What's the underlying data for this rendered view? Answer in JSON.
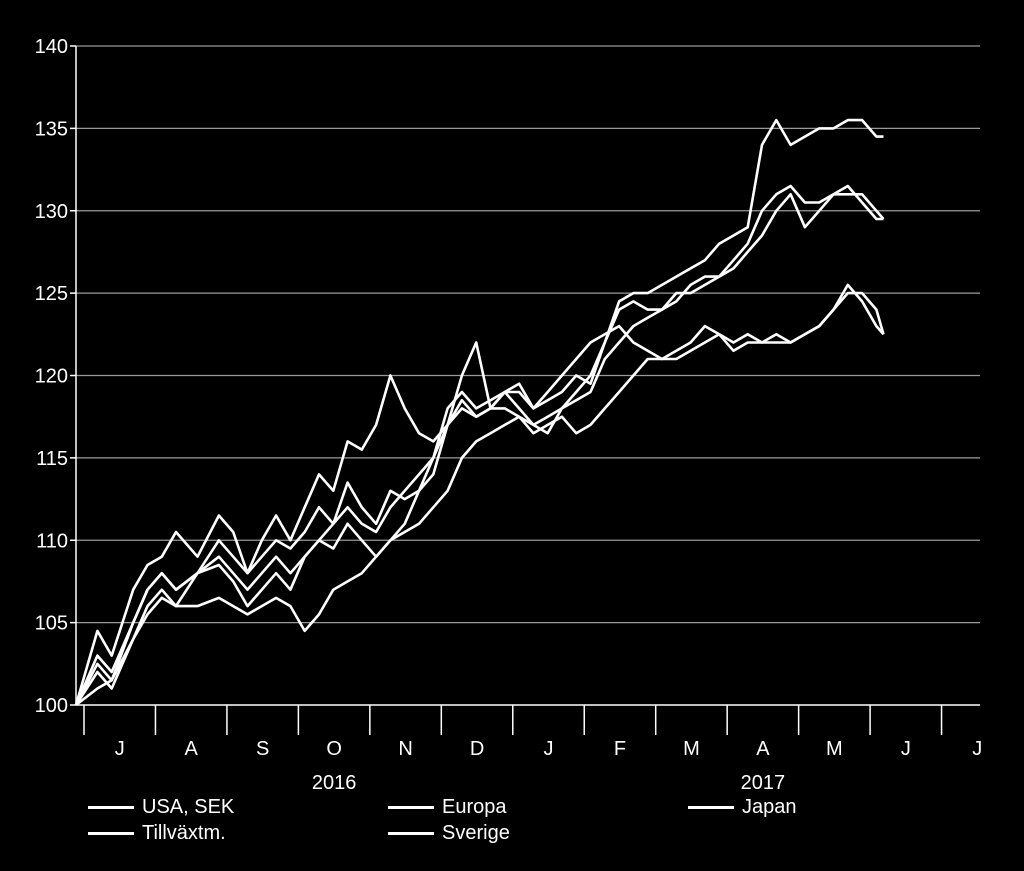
{
  "chart_data": {
    "type": "line",
    "title": "",
    "xlabel": "",
    "ylabel": "",
    "ylim": [
      100,
      140
    ],
    "yticks": [
      100,
      105,
      110,
      115,
      120,
      125,
      130,
      135,
      140
    ],
    "grid": true,
    "line_color": "#ffffff",
    "background_color": "#000000",
    "x_months": [
      "J",
      "A",
      "S",
      "O",
      "N",
      "D",
      "J",
      "F",
      "M",
      "A",
      "M",
      "J",
      "J"
    ],
    "x_years": [
      {
        "label": "2016",
        "month_index": 3.5
      },
      {
        "label": "2017",
        "month_index": 9.5
      }
    ],
    "legend_position": "bottom",
    "series": [
      {
        "name": "USA, SEK",
        "points": [
          [
            0,
            100
          ],
          [
            0.3,
            104.5
          ],
          [
            0.5,
            103
          ],
          [
            0.8,
            107
          ],
          [
            1,
            108.5
          ],
          [
            1.2,
            109
          ],
          [
            1.4,
            110.5
          ],
          [
            1.7,
            109
          ],
          [
            2,
            111.5
          ],
          [
            2.2,
            110.5
          ],
          [
            2.4,
            108
          ],
          [
            2.6,
            110
          ],
          [
            2.8,
            111.5
          ],
          [
            3,
            110
          ],
          [
            3.2,
            112
          ],
          [
            3.4,
            114
          ],
          [
            3.6,
            113
          ],
          [
            3.8,
            116
          ],
          [
            4,
            115.5
          ],
          [
            4.2,
            117
          ],
          [
            4.4,
            120
          ],
          [
            4.6,
            118
          ],
          [
            4.8,
            116.5
          ],
          [
            5,
            116
          ],
          [
            5.2,
            117
          ],
          [
            5.4,
            118.5
          ],
          [
            5.6,
            117.5
          ],
          [
            5.8,
            118
          ],
          [
            6,
            119
          ],
          [
            6.2,
            119.5
          ],
          [
            6.4,
            118
          ],
          [
            6.6,
            118.5
          ],
          [
            6.8,
            119
          ],
          [
            7,
            120
          ],
          [
            7.2,
            119.5
          ],
          [
            7.4,
            122
          ],
          [
            7.6,
            124.5
          ],
          [
            7.8,
            125
          ],
          [
            8,
            125
          ],
          [
            8.2,
            125.5
          ],
          [
            8.4,
            126
          ],
          [
            8.6,
            126.5
          ],
          [
            8.8,
            127
          ],
          [
            9,
            128
          ],
          [
            9.2,
            128.5
          ],
          [
            9.4,
            129
          ],
          [
            9.6,
            134
          ],
          [
            9.8,
            135.5
          ],
          [
            10,
            134
          ],
          [
            10.2,
            134.5
          ],
          [
            10.4,
            135
          ],
          [
            10.6,
            135
          ],
          [
            10.8,
            135.5
          ],
          [
            11,
            135.5
          ],
          [
            11.2,
            134.5
          ],
          [
            11.3,
            134.5
          ]
        ]
      },
      {
        "name": "Europa",
        "points": [
          [
            0,
            100
          ],
          [
            0.3,
            102
          ],
          [
            0.5,
            101
          ],
          [
            0.8,
            104
          ],
          [
            1,
            106
          ],
          [
            1.2,
            107
          ],
          [
            1.4,
            106
          ],
          [
            1.7,
            108
          ],
          [
            2,
            108.5
          ],
          [
            2.2,
            107.5
          ],
          [
            2.4,
            106
          ],
          [
            2.6,
            107
          ],
          [
            2.8,
            108
          ],
          [
            3,
            107
          ],
          [
            3.2,
            109
          ],
          [
            3.4,
            110
          ],
          [
            3.6,
            111
          ],
          [
            3.8,
            112
          ],
          [
            4,
            111
          ],
          [
            4.2,
            110.5
          ],
          [
            4.4,
            112
          ],
          [
            4.6,
            113
          ],
          [
            4.8,
            114
          ],
          [
            5,
            115
          ],
          [
            5.2,
            117
          ],
          [
            5.4,
            118
          ],
          [
            5.6,
            117.5
          ],
          [
            5.8,
            118
          ],
          [
            6,
            118
          ],
          [
            6.2,
            117.5
          ],
          [
            6.4,
            117
          ],
          [
            6.6,
            117.5
          ],
          [
            6.8,
            118
          ],
          [
            7,
            118.5
          ],
          [
            7.2,
            119
          ],
          [
            7.4,
            121
          ],
          [
            7.6,
            122
          ],
          [
            7.8,
            123
          ],
          [
            8,
            123.5
          ],
          [
            8.2,
            124
          ],
          [
            8.4,
            125
          ],
          [
            8.6,
            125
          ],
          [
            8.8,
            125.5
          ],
          [
            9,
            126
          ],
          [
            9.2,
            126.5
          ],
          [
            9.4,
            127.5
          ],
          [
            9.6,
            128.5
          ],
          [
            9.8,
            130
          ],
          [
            10,
            131
          ],
          [
            10.2,
            129
          ],
          [
            10.4,
            130
          ],
          [
            10.6,
            131
          ],
          [
            10.8,
            131.5
          ],
          [
            11,
            130.5
          ],
          [
            11.2,
            129.5
          ],
          [
            11.3,
            129.5
          ]
        ]
      },
      {
        "name": "Japan",
        "points": [
          [
            0,
            100
          ],
          [
            0.3,
            103
          ],
          [
            0.5,
            102
          ],
          [
            0.8,
            105
          ],
          [
            1,
            107
          ],
          [
            1.2,
            108
          ],
          [
            1.4,
            107
          ],
          [
            1.7,
            108
          ],
          [
            2,
            109
          ],
          [
            2.2,
            108
          ],
          [
            2.4,
            107
          ],
          [
            2.6,
            108
          ],
          [
            2.8,
            109
          ],
          [
            3,
            108
          ],
          [
            3.2,
            109
          ],
          [
            3.4,
            110
          ],
          [
            3.6,
            109.5
          ],
          [
            3.8,
            111
          ],
          [
            4,
            110
          ],
          [
            4.2,
            109
          ],
          [
            4.4,
            110
          ],
          [
            4.6,
            111
          ],
          [
            4.8,
            113
          ],
          [
            5,
            115
          ],
          [
            5.2,
            118
          ],
          [
            5.4,
            119
          ],
          [
            5.6,
            118
          ],
          [
            5.8,
            118.5
          ],
          [
            6,
            119
          ],
          [
            6.2,
            118
          ],
          [
            6.4,
            117
          ],
          [
            6.6,
            116.5
          ],
          [
            6.8,
            118
          ],
          [
            7,
            119
          ],
          [
            7.2,
            120
          ],
          [
            7.4,
            122
          ],
          [
            7.6,
            124
          ],
          [
            7.8,
            124.5
          ],
          [
            8,
            124
          ],
          [
            8.2,
            124
          ],
          [
            8.4,
            124.5
          ],
          [
            8.6,
            125.5
          ],
          [
            8.8,
            126
          ],
          [
            9,
            126
          ],
          [
            9.2,
            127
          ],
          [
            9.4,
            128
          ],
          [
            9.6,
            130
          ],
          [
            9.8,
            131
          ],
          [
            10,
            131.5
          ],
          [
            10.2,
            130.5
          ],
          [
            10.4,
            130.5
          ],
          [
            10.6,
            131
          ],
          [
            10.8,
            131
          ],
          [
            11,
            131
          ],
          [
            11.2,
            130
          ],
          [
            11.3,
            129.5
          ]
        ]
      },
      {
        "name": "Tillväxtm.",
        "points": [
          [
            0,
            100
          ],
          [
            0.3,
            102.5
          ],
          [
            0.5,
            101.5
          ],
          [
            0.8,
            105
          ],
          [
            1,
            107
          ],
          [
            1.2,
            108
          ],
          [
            1.4,
            107
          ],
          [
            1.7,
            108
          ],
          [
            2,
            110
          ],
          [
            2.2,
            109
          ],
          [
            2.4,
            108
          ],
          [
            2.6,
            109
          ],
          [
            2.8,
            110
          ],
          [
            3,
            109.5
          ],
          [
            3.2,
            110.5
          ],
          [
            3.4,
            112
          ],
          [
            3.6,
            111
          ],
          [
            3.8,
            113.5
          ],
          [
            4,
            112
          ],
          [
            4.2,
            111
          ],
          [
            4.4,
            113
          ],
          [
            4.6,
            112.5
          ],
          [
            4.8,
            113
          ],
          [
            5,
            114
          ],
          [
            5.2,
            117
          ],
          [
            5.4,
            120
          ],
          [
            5.6,
            122
          ],
          [
            5.8,
            118
          ],
          [
            6,
            119
          ],
          [
            6.2,
            119
          ],
          [
            6.4,
            118
          ],
          [
            6.6,
            119
          ],
          [
            6.8,
            120
          ],
          [
            7,
            121
          ],
          [
            7.2,
            122
          ],
          [
            7.4,
            122.5
          ],
          [
            7.6,
            123
          ],
          [
            7.8,
            122
          ],
          [
            8,
            121.5
          ],
          [
            8.2,
            121
          ],
          [
            8.4,
            121.5
          ],
          [
            8.6,
            122
          ],
          [
            8.8,
            123
          ],
          [
            9,
            122.5
          ],
          [
            9.2,
            121.5
          ],
          [
            9.4,
            122
          ],
          [
            9.6,
            122
          ],
          [
            9.8,
            122.5
          ],
          [
            10,
            122
          ],
          [
            10.2,
            122.5
          ],
          [
            10.4,
            123
          ],
          [
            10.6,
            124
          ],
          [
            10.8,
            125
          ],
          [
            11,
            125
          ],
          [
            11.2,
            124
          ],
          [
            11.3,
            122.5
          ]
        ]
      },
      {
        "name": "Sverige",
        "points": [
          [
            0,
            100
          ],
          [
            0.3,
            101
          ],
          [
            0.5,
            101.5
          ],
          [
            0.8,
            104
          ],
          [
            1,
            105.5
          ],
          [
            1.2,
            106.5
          ],
          [
            1.4,
            106
          ],
          [
            1.7,
            106
          ],
          [
            2,
            106.5
          ],
          [
            2.2,
            106
          ],
          [
            2.4,
            105.5
          ],
          [
            2.6,
            106
          ],
          [
            2.8,
            106.5
          ],
          [
            3,
            106
          ],
          [
            3.2,
            104.5
          ],
          [
            3.4,
            105.5
          ],
          [
            3.6,
            107
          ],
          [
            3.8,
            107.5
          ],
          [
            4,
            108
          ],
          [
            4.2,
            109
          ],
          [
            4.4,
            110
          ],
          [
            4.6,
            110.5
          ],
          [
            4.8,
            111
          ],
          [
            5,
            112
          ],
          [
            5.2,
            113
          ],
          [
            5.4,
            115
          ],
          [
            5.6,
            116
          ],
          [
            5.8,
            116.5
          ],
          [
            6,
            117
          ],
          [
            6.2,
            117.5
          ],
          [
            6.4,
            116.5
          ],
          [
            6.6,
            117
          ],
          [
            6.8,
            117.5
          ],
          [
            7,
            116.5
          ],
          [
            7.2,
            117
          ],
          [
            7.4,
            118
          ],
          [
            7.6,
            119
          ],
          [
            7.8,
            120
          ],
          [
            8,
            121
          ],
          [
            8.2,
            121
          ],
          [
            8.4,
            121
          ],
          [
            8.6,
            121.5
          ],
          [
            8.8,
            122
          ],
          [
            9,
            122.5
          ],
          [
            9.2,
            122
          ],
          [
            9.4,
            122.5
          ],
          [
            9.6,
            122
          ],
          [
            9.8,
            122
          ],
          [
            10,
            122
          ],
          [
            10.2,
            122.5
          ],
          [
            10.4,
            123
          ],
          [
            10.6,
            124
          ],
          [
            10.8,
            125.5
          ],
          [
            11,
            124.5
          ],
          [
            11.2,
            123
          ],
          [
            11.3,
            122.5
          ]
        ]
      }
    ]
  }
}
